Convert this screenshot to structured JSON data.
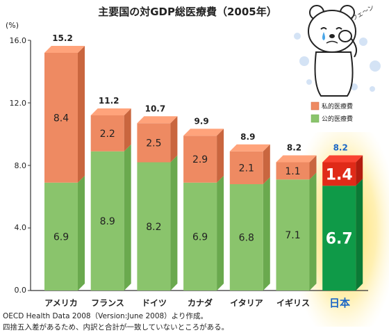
{
  "chart_data": {
    "type": "bar",
    "stacked": true,
    "title": "主要国の対GDP総医療費（2005年）",
    "y_unit": "(%)",
    "ylim": [
      0,
      16
    ],
    "yticks": [
      "0.0",
      "4.0",
      "8.0",
      "12.0",
      "16.0"
    ],
    "categories": [
      "アメリカ",
      "フランス",
      "ドイツ",
      "カナダ",
      "イタリア",
      "イギリス",
      "日本"
    ],
    "highlight_category": "日本",
    "series": [
      {
        "name": "公的医療費",
        "values": [
          6.9,
          8.9,
          8.2,
          6.9,
          6.8,
          7.1,
          6.7
        ],
        "labels": [
          "6.9",
          "8.9",
          "8.2",
          "6.9",
          "6.8",
          "7.1",
          "6.7"
        ]
      },
      {
        "name": "私的医療費",
        "values": [
          8.4,
          2.2,
          2.5,
          2.9,
          2.1,
          1.1,
          1.4
        ],
        "labels": [
          "8.4",
          "2.2",
          "2.5",
          "2.9",
          "2.1",
          "1.1",
          "1.4"
        ]
      }
    ],
    "totals": [
      15.2,
      11.2,
      10.7,
      9.9,
      8.9,
      8.2,
      8.2
    ],
    "total_labels": [
      "15.2",
      "11.2",
      "10.7",
      "9.9",
      "8.9",
      "8.2",
      "8.2"
    ],
    "legend": {
      "position": "right",
      "entries": [
        "私的医療費",
        "公的医療費"
      ]
    },
    "grid": false
  },
  "colors": {
    "public": "#8ac46c",
    "public_side": "#6aa94e",
    "private": "#ee8a62",
    "private_side": "#c9663f",
    "public_hl": "#0f9a48",
    "public_hl_side": "#0b7a36",
    "private_hl": "#e02a18",
    "private_hl_side": "#b31c0f",
    "highlight_glow": "#ffdd66",
    "label_hl": "#1a66c6"
  },
  "mascot": {
    "sound_effect": "ウェ〜ン",
    "icon": "crying-bear-icon"
  },
  "notes": [
    "OECD Health Data 2008（Version:June 2008）より作成。",
    "四捨五入差があるため、内訳と合計が一致していないところがある。"
  ]
}
